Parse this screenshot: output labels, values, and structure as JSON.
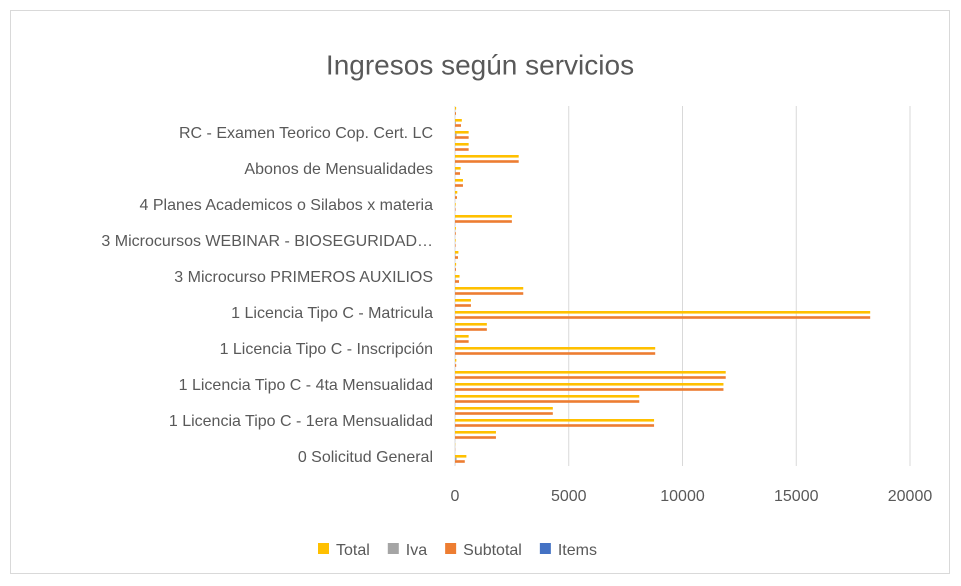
{
  "chart_data": {
    "type": "barh",
    "title": "Ingresos según servicios",
    "categories": [
      "0 Solicitud General",
      null,
      null,
      "1 Licencia Tipo C - 1era Mensualidad",
      null,
      null,
      "1 Licencia Tipo C - 4ta Mensualidad",
      null,
      null,
      "1 Licencia Tipo C - Inscripción",
      null,
      null,
      "1 Licencia Tipo C - Matricula",
      null,
      null,
      "3 Microcurso PRIMEROS AUXILIOS",
      null,
      null,
      "3 Microcursos WEBINAR - BIOSEGURIDAD…",
      null,
      null,
      "4 Planes Academicos o Silabos x materia",
      null,
      null,
      "Abonos de Mensualidades",
      null,
      null,
      "RC - Examen Teorico Cop. Cert. LC",
      null,
      null
    ],
    "series": [
      {
        "name": "Total",
        "color": "#ffc000",
        "values": [
          500,
          10,
          1800,
          8750,
          4300,
          8100,
          11800,
          11900,
          60,
          8800,
          600,
          1400,
          18250,
          700,
          3000,
          200,
          50,
          150,
          30,
          40,
          2500,
          30,
          100,
          350,
          250,
          2800,
          600,
          600,
          300,
          50
        ]
      },
      {
        "name": "Iva",
        "color": "#a5a5a5",
        "values": [
          70,
          1,
          0,
          0,
          0,
          0,
          0,
          0,
          7,
          0,
          70,
          0,
          0,
          0,
          0,
          24,
          6,
          18,
          4,
          5,
          0,
          4,
          12,
          0,
          30,
          0,
          0,
          70,
          36,
          6
        ]
      },
      {
        "name": "Subtotal",
        "color": "#ed7d31",
        "values": [
          430,
          9,
          1800,
          8750,
          4300,
          8100,
          11800,
          11900,
          53,
          8800,
          600,
          1400,
          18250,
          700,
          3000,
          176,
          44,
          132,
          26,
          35,
          2500,
          26,
          88,
          350,
          220,
          2800,
          600,
          600,
          264,
          44
        ]
      },
      {
        "name": "Items",
        "color": "#4472c4",
        "values": [
          3,
          1,
          2,
          5,
          3,
          4,
          6,
          6,
          1,
          5,
          2,
          2,
          8,
          2,
          3,
          1,
          1,
          1,
          1,
          1,
          4,
          1,
          1,
          2,
          1,
          3,
          2,
          2,
          1,
          1
        ]
      }
    ],
    "xlim": [
      0,
      20000
    ],
    "xticks": [
      0,
      5000,
      10000,
      15000,
      20000
    ],
    "grid": true,
    "legend": "bottom"
  }
}
